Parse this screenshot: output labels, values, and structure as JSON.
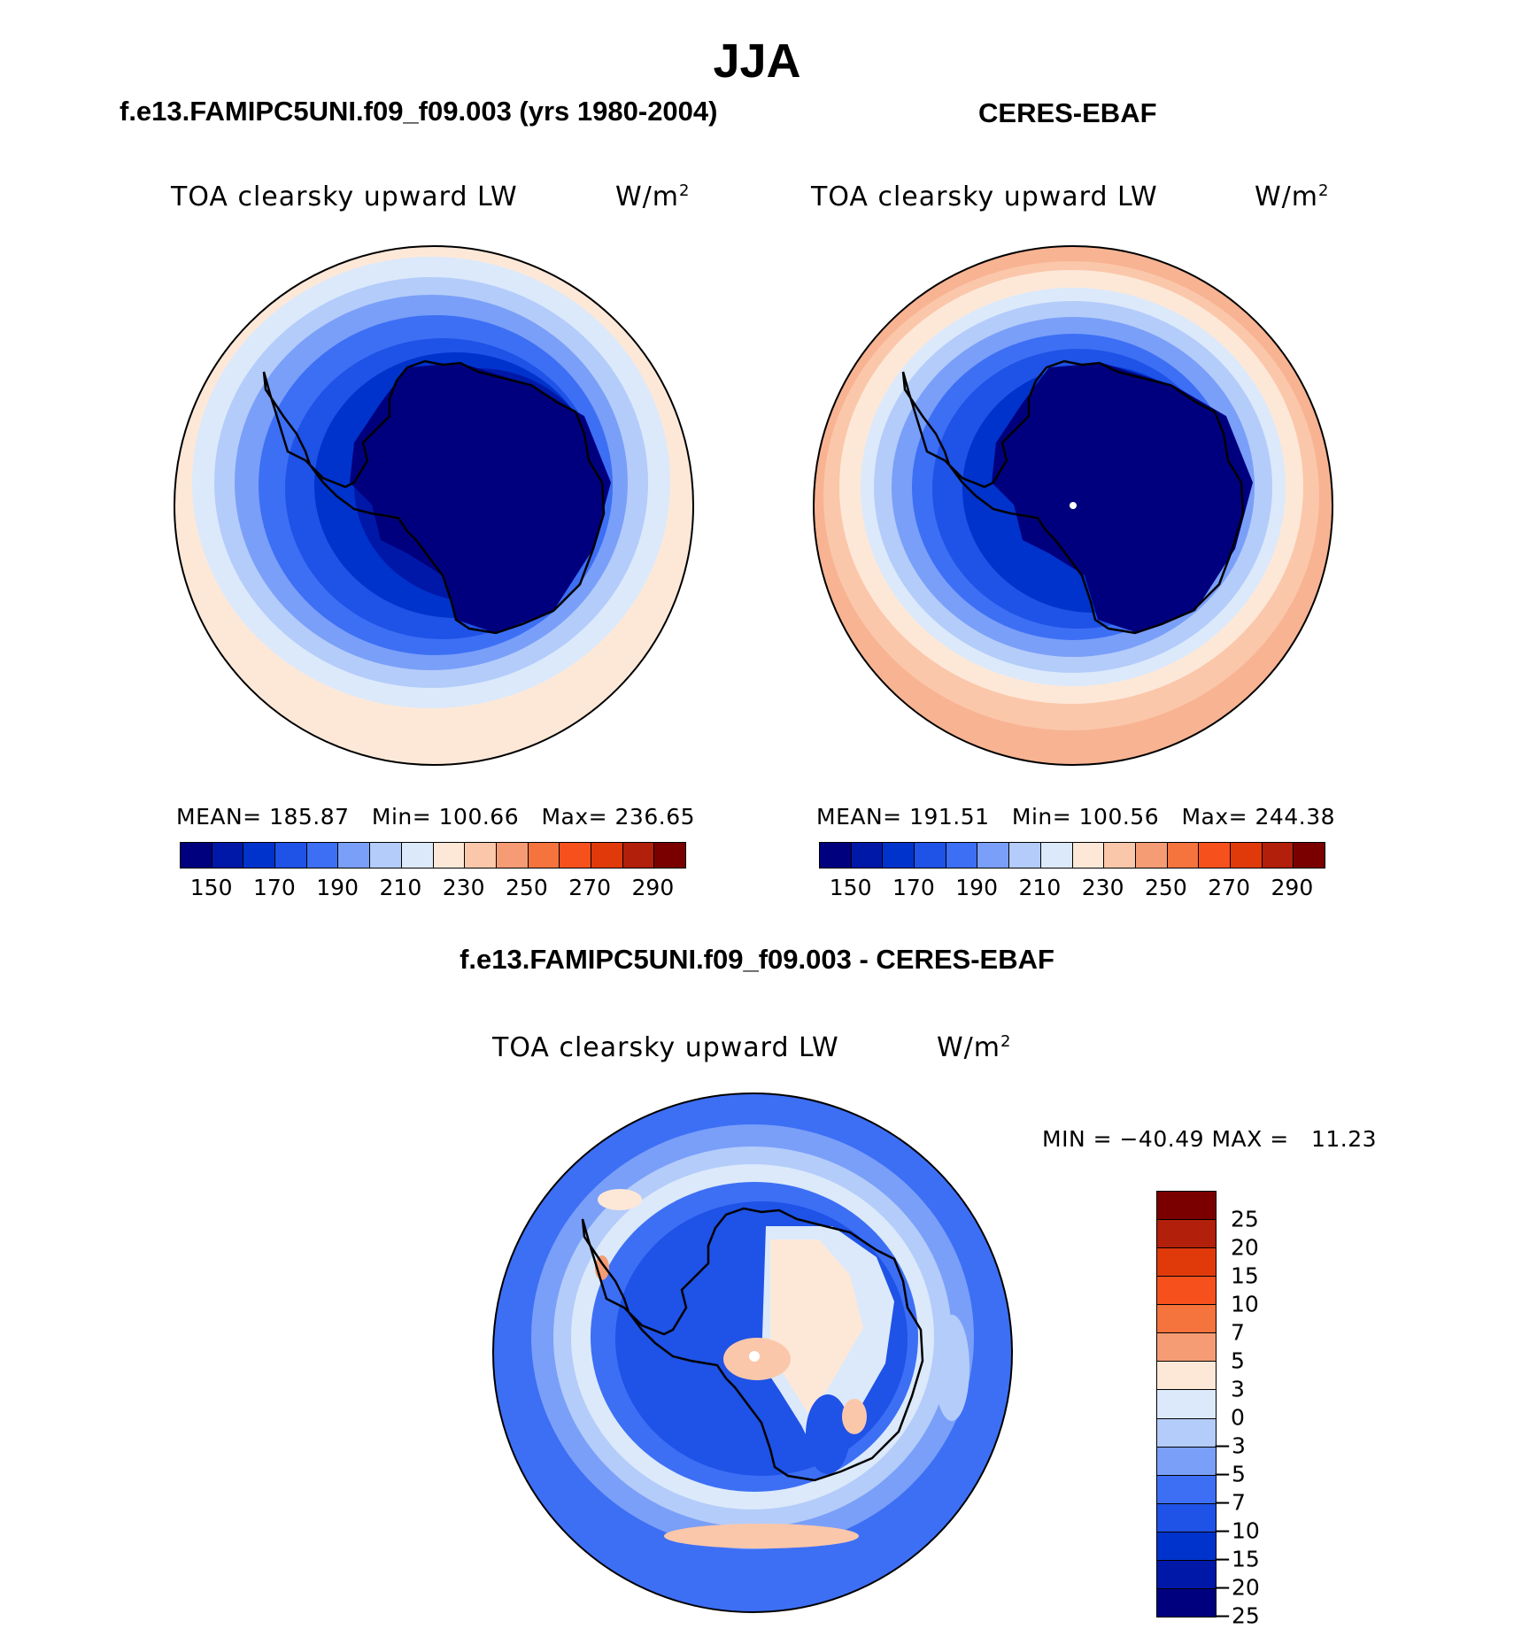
{
  "figure": {
    "title": "JJA",
    "left_panel_title": "f.e13.FAMIPC5UNI.f09_f09.003 (yrs 1980-2004)",
    "right_panel_title": "CERES-EBAF",
    "diff_panel_title": "f.e13.FAMIPC5UNI.f09_f09.003 - CERES-EBAF"
  },
  "left": {
    "variable": "TOA clearsky upward LW",
    "units_base": "W/m",
    "units_exp": "2",
    "stats": "MEAN= 185.87   Min= 100.66   Max= 236.65",
    "mean": 185.87,
    "min": 100.66,
    "max": 236.65
  },
  "right": {
    "variable": "TOA clearsky upward LW",
    "units_base": "W/m",
    "units_exp": "2",
    "stats": "MEAN= 191.51   Min= 100.56   Max= 244.38",
    "mean": 191.51,
    "min": 100.56,
    "max": 244.38
  },
  "diff": {
    "variable": "TOA clearsky upward LW",
    "units_base": "W/m",
    "units_exp": "2",
    "stats": "MIN = −40.49 MAX =   11.23",
    "min": -40.49,
    "max": 11.23
  },
  "colorbar_abs": {
    "colors": [
      "#00007f",
      "#0018a8",
      "#0033cc",
      "#1f52e6",
      "#3d6ff5",
      "#7a9ff8",
      "#b4ccfa",
      "#dbe9fb",
      "#fde8d8",
      "#fbc7aa",
      "#f59c74",
      "#f5733d",
      "#f6511d",
      "#e03a0a",
      "#b21f0a",
      "#7a0000"
    ],
    "labels": [
      "150",
      "170",
      "190",
      "210",
      "230",
      "250",
      "270",
      "290"
    ]
  },
  "colorbar_diff": {
    "colors": [
      "#7a0000",
      "#b21f0a",
      "#e03a0a",
      "#f6511d",
      "#f5733d",
      "#f59c74",
      "#fde8d8",
      "#dbe9fb",
      "#b4ccfa",
      "#7a9ff8",
      "#3d6ff5",
      "#1f52e6",
      "#0033cc",
      "#0018a8",
      "#00007f"
    ],
    "labels": [
      "25",
      "20",
      "15",
      "10",
      "7",
      "5",
      "3",
      "0",
      "−3",
      "−5",
      "−7",
      "−10",
      "−15",
      "−20",
      "−25"
    ]
  }
}
